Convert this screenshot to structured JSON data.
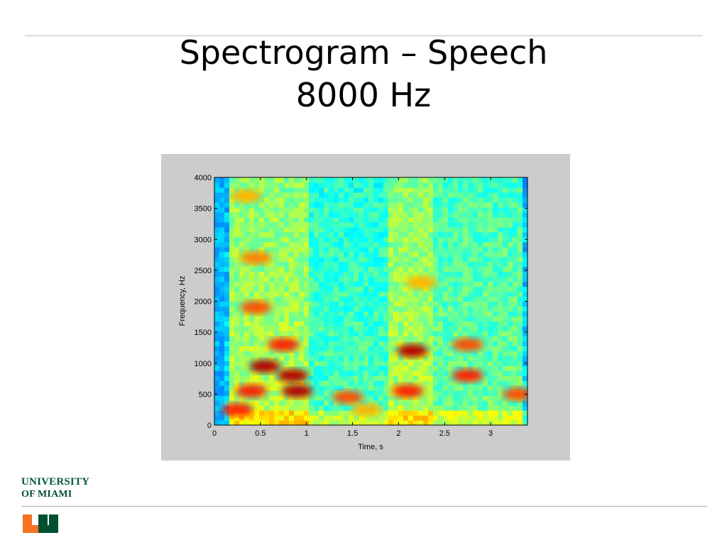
{
  "slide": {
    "title_line1": "Spectrogram – Speech",
    "title_line2": "8000 Hz"
  },
  "logo": {
    "line1": "UNIVERSITY",
    "line2": "OF MIAMI",
    "brand_green": "#005030",
    "brand_orange": "#f47321"
  },
  "chart_data": {
    "type": "heatmap",
    "title": "",
    "xlabel": "Time, s",
    "ylabel": "Frequency, Hz",
    "xlim": [
      0,
      3.4
    ],
    "ylim": [
      0,
      4000
    ],
    "xticks": [
      0,
      0.5,
      1,
      1.5,
      2,
      2.5,
      3
    ],
    "xtick_labels": [
      "0",
      "0.5",
      "1",
      "1.5",
      "2",
      "2.5",
      "3"
    ],
    "yticks": [
      0,
      500,
      1000,
      1500,
      2000,
      2500,
      3000,
      3500,
      4000
    ],
    "ytick_labels": [
      "0",
      "500",
      "1000",
      "1500",
      "2000",
      "2500",
      "3000",
      "3500",
      "4000"
    ],
    "colormap": "jet",
    "sample_rate_hz": 8000,
    "grid": false,
    "high_energy_regions": [
      {
        "t": 0.25,
        "f": 250,
        "level": 0.85
      },
      {
        "t": 0.4,
        "f": 550,
        "level": 0.85
      },
      {
        "t": 0.55,
        "f": 950,
        "level": 0.95
      },
      {
        "t": 0.75,
        "f": 1300,
        "level": 0.85
      },
      {
        "t": 0.85,
        "f": 800,
        "level": 0.95
      },
      {
        "t": 0.9,
        "f": 550,
        "level": 0.95
      },
      {
        "t": 0.45,
        "f": 1900,
        "level": 0.8
      },
      {
        "t": 0.45,
        "f": 2700,
        "level": 0.75
      },
      {
        "t": 0.35,
        "f": 3700,
        "level": 0.7
      },
      {
        "t": 1.45,
        "f": 450,
        "level": 0.8
      },
      {
        "t": 1.65,
        "f": 250,
        "level": 0.7
      },
      {
        "t": 2.15,
        "f": 1200,
        "level": 0.95
      },
      {
        "t": 2.1,
        "f": 550,
        "level": 0.85
      },
      {
        "t": 2.25,
        "f": 2300,
        "level": 0.7
      },
      {
        "t": 2.75,
        "f": 800,
        "level": 0.85
      },
      {
        "t": 2.75,
        "f": 1300,
        "level": 0.8
      },
      {
        "t": 3.3,
        "f": 500,
        "level": 0.8
      }
    ]
  }
}
